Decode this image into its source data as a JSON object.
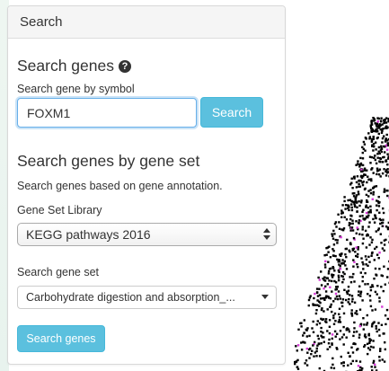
{
  "panel": {
    "title": "Search"
  },
  "search_genes": {
    "heading": "Search genes",
    "help_icon": "question-circle-icon",
    "label": "Search gene by symbol",
    "input_value": "FOXM1",
    "button_label": "Search"
  },
  "search_by_set": {
    "heading": "Search genes by gene set",
    "description": "Search genes based on gene annotation.",
    "library_label": "Gene Set Library",
    "library_selected": "KEGG pathways 2016",
    "geneset_label": "Search gene set",
    "geneset_selected": "Carbohydrate digestion and absorption_...",
    "button_label": "Search genes"
  },
  "colors": {
    "accent": "#5bc0de",
    "focus_border": "#66afe9",
    "point_dark": "#000000",
    "point_highlight": "#d63bd6"
  }
}
